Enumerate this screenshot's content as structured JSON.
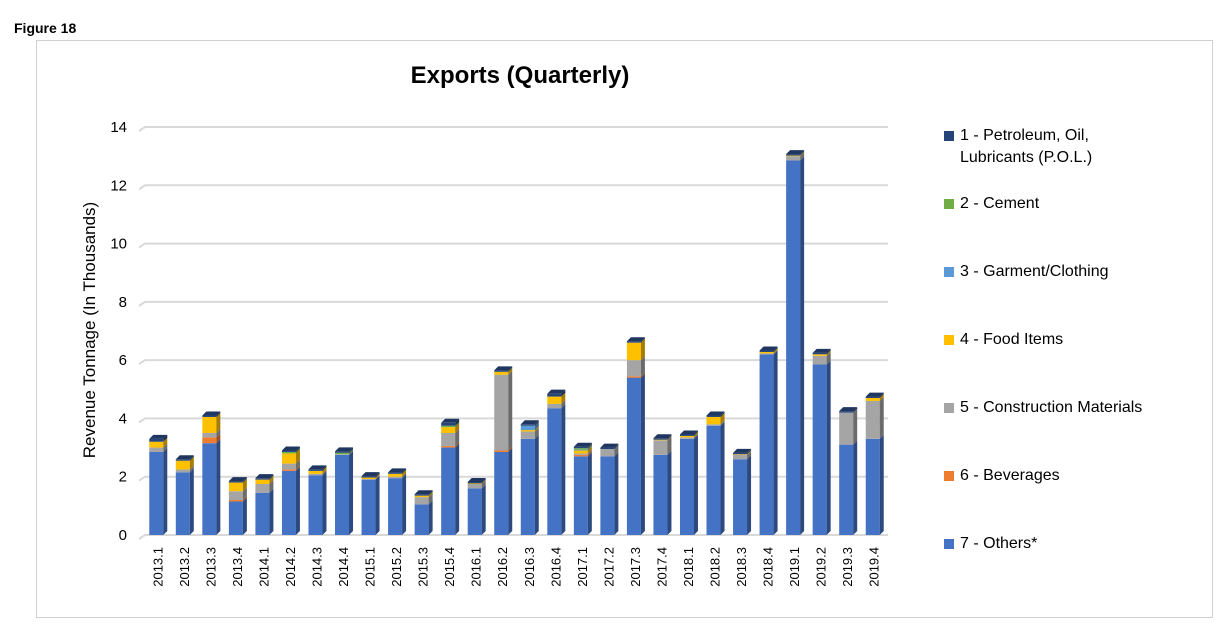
{
  "figure_label": "Figure 18",
  "chart_data": {
    "type": "bar",
    "stacked": true,
    "three_d": true,
    "title": "Exports (Quarterly)",
    "xlabel": "",
    "ylabel": "Revenue Tonnage (In Thousands)",
    "ylim": [
      0,
      14
    ],
    "yticks": [
      "0",
      "2",
      "4",
      "6",
      "8",
      "10",
      "12",
      "14"
    ],
    "grid": true,
    "legend_position": "right",
    "categories": [
      "2013.1",
      "2013.2",
      "2013.3",
      "2013.4",
      "2014.1",
      "2014.2",
      "2014.3",
      "2014.4",
      "2015.1",
      "2015.2",
      "2015.3",
      "2015.4",
      "2016.1",
      "2016.2",
      "2016.3",
      "2016.4",
      "2017.1",
      "2017.2",
      "2017.3",
      "2017.4",
      "2018.1",
      "2018.2",
      "2018.3",
      "2018.4",
      "2019.1",
      "2019.2",
      "2019.3",
      "2019.4"
    ],
    "series": [
      {
        "name": "1 - Petroleum, Oil, Lubricants (P.O.L.)",
        "color": "#264478",
        "values": [
          0.1,
          0.05,
          0.05,
          0.05,
          0.05,
          0.05,
          0.05,
          0.05,
          0.05,
          0.05,
          0.05,
          0.1,
          0.05,
          0.05,
          0.05,
          0.1,
          0.05,
          0.05,
          0.05,
          0.05,
          0.05,
          0.05,
          0.05,
          0.05,
          0.05,
          0.05,
          0.05,
          0.05
        ]
      },
      {
        "name": "2 - Cement",
        "color": "#70ad47",
        "values": [
          0,
          0,
          0,
          0,
          0,
          0.05,
          0,
          0.05,
          0,
          0,
          0,
          0.05,
          0,
          0,
          0,
          0,
          0.05,
          0,
          0,
          0,
          0,
          0,
          0,
          0,
          0,
          0,
          0,
          0
        ]
      },
      {
        "name": "3 - Garment/Clothing",
        "color": "#5b9bd5",
        "values": [
          0,
          0,
          0,
          0,
          0,
          0,
          0,
          0,
          0,
          0,
          0,
          0,
          0,
          0,
          0.15,
          0,
          0.03,
          0,
          0,
          0,
          0,
          0,
          0,
          0,
          0,
          0,
          0,
          0
        ]
      },
      {
        "name": "4 - Food Items",
        "color": "#ffc000",
        "values": [
          0.2,
          0.3,
          0.55,
          0.3,
          0.15,
          0.35,
          0.1,
          0,
          0.05,
          0.1,
          0.05,
          0.2,
          0.02,
          0.1,
          0.05,
          0.25,
          0.1,
          0,
          0.6,
          0.02,
          0.05,
          0.25,
          0.02,
          0.05,
          0.02,
          0.05,
          0,
          0.1
        ]
      },
      {
        "name": "5 - Construction Materials",
        "color": "#a5a5a5",
        "values": [
          0.15,
          0.1,
          0.15,
          0.3,
          0.3,
          0.2,
          0.05,
          0.02,
          0.02,
          0.05,
          0.25,
          0.45,
          0.15,
          2.6,
          0.25,
          0.15,
          0.05,
          0.25,
          0.55,
          0.5,
          0.05,
          0.05,
          0.15,
          0.03,
          0.15,
          0.3,
          1.1,
          1.3
        ]
      },
      {
        "name": "6 - Beverages",
        "color": "#ed7d31",
        "values": [
          0,
          0,
          0.2,
          0.05,
          0,
          0.05,
          0,
          0,
          0,
          0,
          0,
          0.05,
          0,
          0.05,
          0,
          0,
          0.05,
          0,
          0.05,
          0,
          0,
          0,
          0,
          0,
          0,
          0,
          0,
          0
        ]
      },
      {
        "name": "7 - Others*",
        "color": "#4472c4",
        "values": [
          2.85,
          2.15,
          3.15,
          1.15,
          1.45,
          2.2,
          2.05,
          2.75,
          1.9,
          1.95,
          1.05,
          3.0,
          1.6,
          2.85,
          3.3,
          4.35,
          2.7,
          2.7,
          5.4,
          2.75,
          3.3,
          3.75,
          2.6,
          6.2,
          12.85,
          5.85,
          3.1,
          3.3
        ]
      }
    ]
  }
}
